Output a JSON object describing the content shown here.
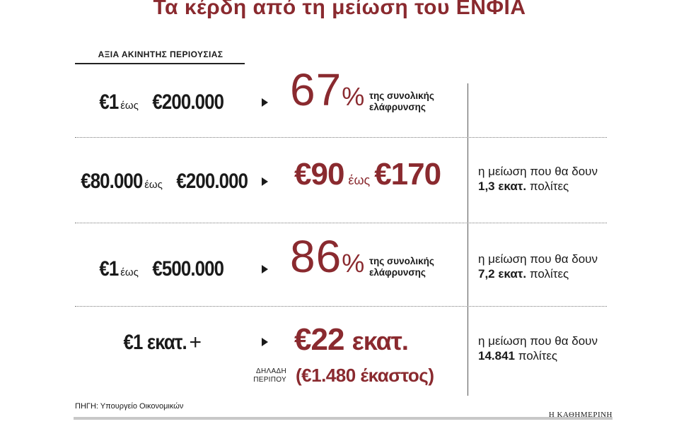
{
  "title": "Τα κέρδη από τη μείωση του ΕΝΦΙΑ",
  "section_label": "ΑΞΙΑ ΑΚΙΝΗΤΗΣ ΠΕΡΙΟΥΣΙΑΣ",
  "rows": [
    {
      "range_from": "€1",
      "range_sep": "έως",
      "range_to": "€200.000",
      "result_value": "67",
      "result_unit": "%",
      "note_line1": "της συνολικής",
      "note_line2": "ελάφρυνσης"
    },
    {
      "range_from": "€80.000",
      "range_sep": "έως",
      "range_to": "€200.000",
      "result_from": "€90",
      "result_sep": "έως",
      "result_to": "€170",
      "side_line1": "η μείωση που θα δουν",
      "side_bold": "1,3 εκατ.",
      "side_rest": "πολίτες"
    },
    {
      "range_from": "€1",
      "range_sep": "έως",
      "range_to": "€500.000",
      "result_value": "86",
      "result_unit": "%",
      "note_line1": "της συνολικής",
      "note_line2": "ελάφρυνσης",
      "side_line1": "η μείωση που θα δουν",
      "side_bold": "7,2 εκατ.",
      "side_rest": "πολίτες"
    },
    {
      "range_value": "€1 εκατ.",
      "range_plus": "+",
      "result_main": "€22",
      "result_unit": "εκατ.",
      "approx_line1": "ΔΗΛΑΔΗ",
      "approx_line2": "ΠΕΡΙΠΟΥ",
      "result_sub": "(€1.480 έκαστος)",
      "side_line1": "η μείωση που θα δουν",
      "side_bold": "14.841",
      "side_rest": "πολίτες"
    }
  ],
  "source": "ΠΗΓΗ: Υπουργείο Οικονομικών",
  "brand": "Η ΚΑΘΗΜΕΡΙΝΗ",
  "colors": {
    "accent": "#8a2a2f",
    "text": "#1a1a1a",
    "divider": "#7a7a7a"
  },
  "icons": {
    "row_arrow": "triangle-right-icon",
    "separator": "dotted-line"
  }
}
